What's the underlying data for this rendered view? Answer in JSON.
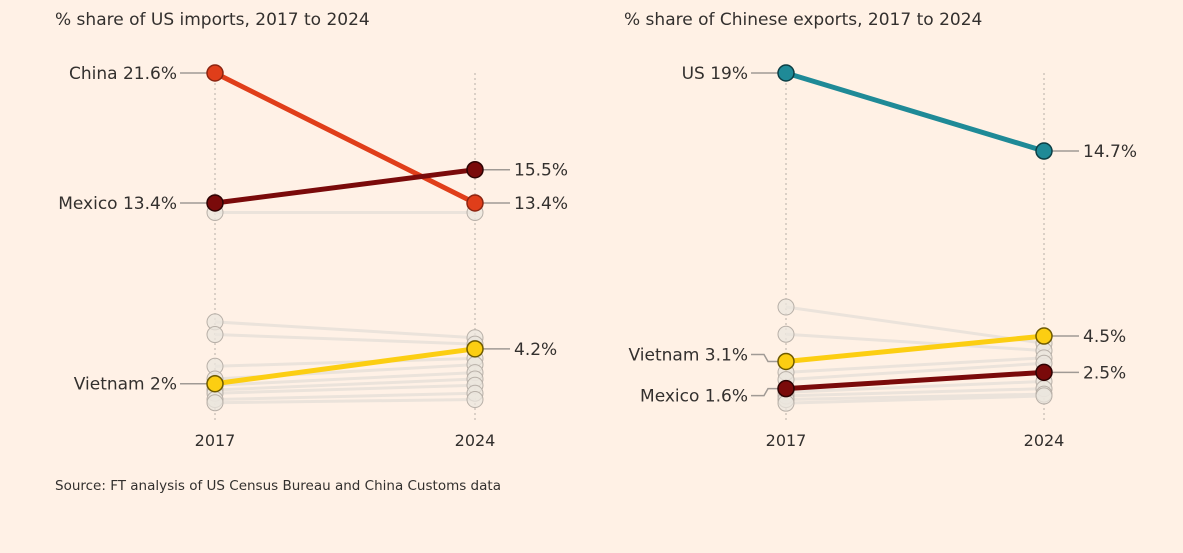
{
  "source": "Source: FT analysis of US Census Bureau and China Customs data",
  "colors": {
    "background": "#fff1e5",
    "grey_line": "#ebe3db",
    "grey_dot_fill": "#ebe5de",
    "grey_dot_stroke": "#b8b0a8",
    "axis_dotted": "#b7afa8",
    "leader": "#a09a95",
    "text": "#33302e"
  },
  "chart_data": [
    {
      "type": "line",
      "subtype": "slope",
      "title": "% share of US imports, 2017 to 2024",
      "categories": [
        "2017",
        "2024"
      ],
      "ylim": [
        0,
        21.6
      ],
      "grid": false,
      "highlighted": [
        {
          "name": "China",
          "values": [
            21.6,
            13.4
          ],
          "color": "#e03e1a",
          "stroke": "#8c2410",
          "start_label": "China 21.6%",
          "end_label": "13.4%"
        },
        {
          "name": "Mexico",
          "values": [
            13.4,
            15.5
          ],
          "color": "#7a0a0a",
          "stroke": "#2e0303",
          "start_label": "Mexico 13.4%",
          "end_label": "15.5%"
        },
        {
          "name": "Vietnam",
          "values": [
            2.0,
            4.2
          ],
          "color": "#fcce12",
          "stroke": "#6e5a00",
          "start_label": "Vietnam 2%",
          "end_label": "4.2%"
        }
      ],
      "others": [
        {
          "values": [
            12.8,
            12.8
          ]
        },
        {
          "values": [
            5.9,
            4.9
          ]
        },
        {
          "values": [
            5.1,
            4.5
          ]
        },
        {
          "values": [
            3.1,
            3.6
          ]
        },
        {
          "values": [
            2.3,
            3.2
          ]
        },
        {
          "values": [
            1.9,
            2.7
          ]
        },
        {
          "values": [
            1.6,
            2.3
          ]
        },
        {
          "values": [
            1.4,
            1.9
          ]
        },
        {
          "values": [
            1.0,
            1.4
          ]
        },
        {
          "values": [
            0.8,
            1.0
          ]
        }
      ]
    },
    {
      "type": "line",
      "subtype": "slope",
      "title": "% share of Chinese exports, 2017 to 2024",
      "categories": [
        "2017",
        "2024"
      ],
      "ylim": [
        0,
        19
      ],
      "grid": false,
      "highlighted": [
        {
          "name": "US",
          "values": [
            19,
            14.7
          ],
          "color": "#1f8a97",
          "stroke": "#0d3e44",
          "start_label": "US 19%",
          "end_label": "14.7%"
        },
        {
          "name": "Vietnam",
          "values": [
            3.1,
            4.5
          ],
          "color": "#fcce12",
          "stroke": "#6e5a00",
          "start_label": "Vietnam 3.1%",
          "end_label": "4.5%"
        },
        {
          "name": "Mexico",
          "values": [
            1.6,
            2.5
          ],
          "color": "#7a0a0a",
          "stroke": "#2e0303",
          "start_label": "Mexico 1.6%",
          "end_label": "2.5%"
        }
      ],
      "others": [
        {
          "values": [
            6.1,
            4.1
          ]
        },
        {
          "values": [
            4.6,
            3.7
          ]
        },
        {
          "values": [
            2.5,
            3.3
          ]
        },
        {
          "values": [
            2.1,
            3.0
          ]
        },
        {
          "values": [
            1.4,
            2.0
          ]
        },
        {
          "values": [
            1.2,
            1.6
          ]
        },
        {
          "values": [
            1.0,
            1.3
          ]
        },
        {
          "values": [
            0.8,
            1.2
          ]
        }
      ]
    }
  ]
}
